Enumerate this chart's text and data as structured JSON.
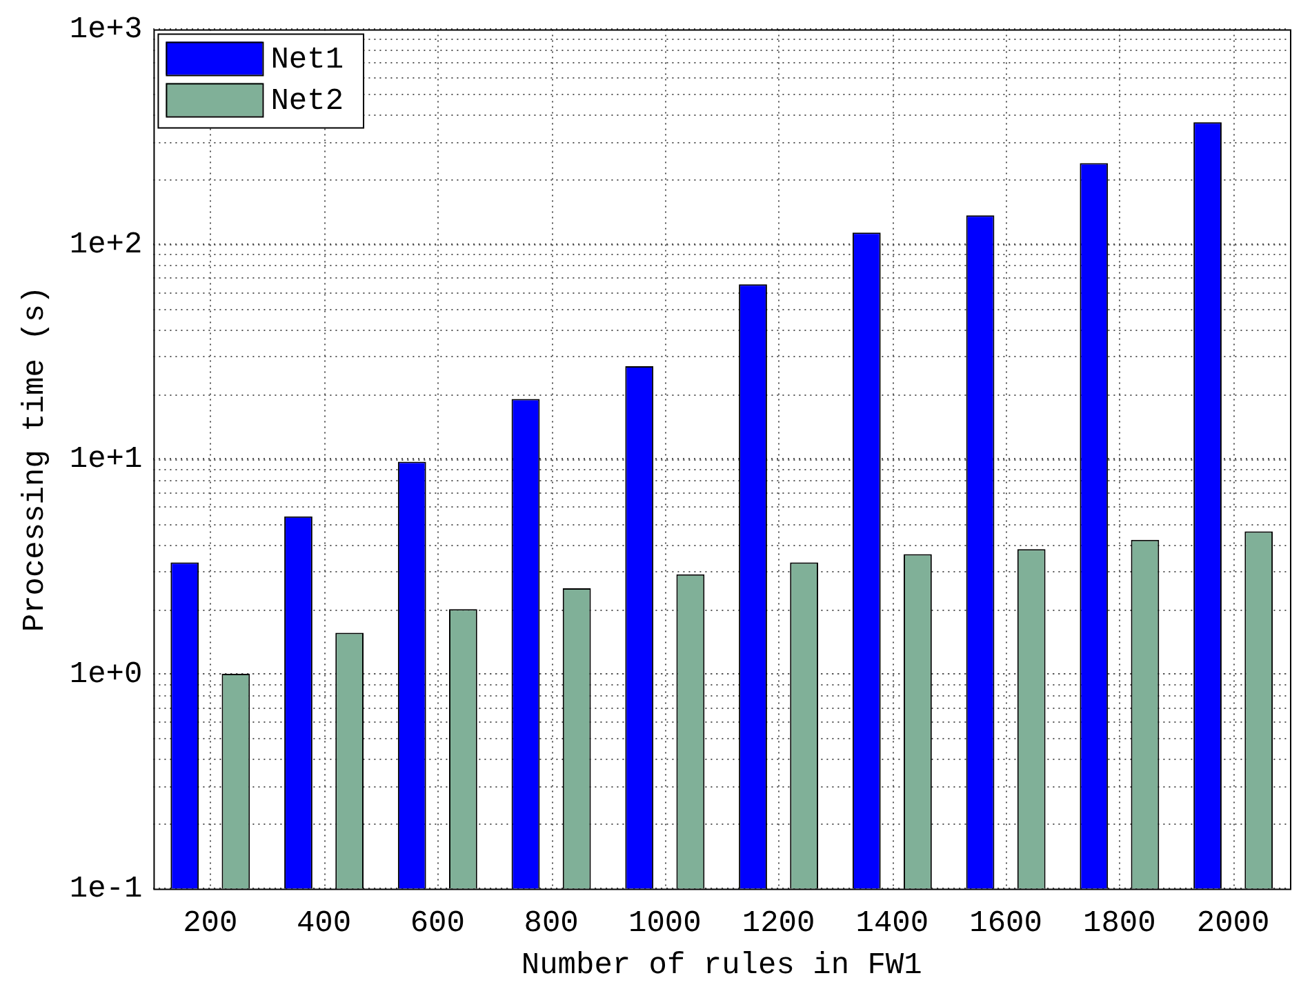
{
  "chart_data": {
    "type": "bar",
    "xlabel": "Number of rules in FW1",
    "ylabel": "Processing time (s)",
    "categories": [
      "200",
      "400",
      "600",
      "800",
      "1000",
      "1200",
      "1400",
      "1600",
      "1800",
      "2000"
    ],
    "series": [
      {
        "name": "Net1",
        "color": "#0000ff",
        "values": [
          3.3,
          5.4,
          9.7,
          19,
          27,
          65,
          113,
          136,
          238,
          369
        ]
      },
      {
        "name": "Net2",
        "color": "#80b098",
        "values": [
          1.0,
          1.55,
          2.0,
          2.5,
          2.9,
          3.3,
          3.6,
          3.8,
          4.2,
          4.6
        ]
      }
    ],
    "log": "y",
    "ylim": [
      0.1,
      1000
    ],
    "yticks": [
      {
        "value": 0.1,
        "label": "1e-1"
      },
      {
        "value": 1,
        "label": "1e+0"
      },
      {
        "value": 10,
        "label": "1e+1"
      },
      {
        "value": 100,
        "label": "1e+2"
      },
      {
        "value": 1000,
        "label": "1e+3"
      }
    ],
    "grid": true,
    "legend": "top left"
  }
}
